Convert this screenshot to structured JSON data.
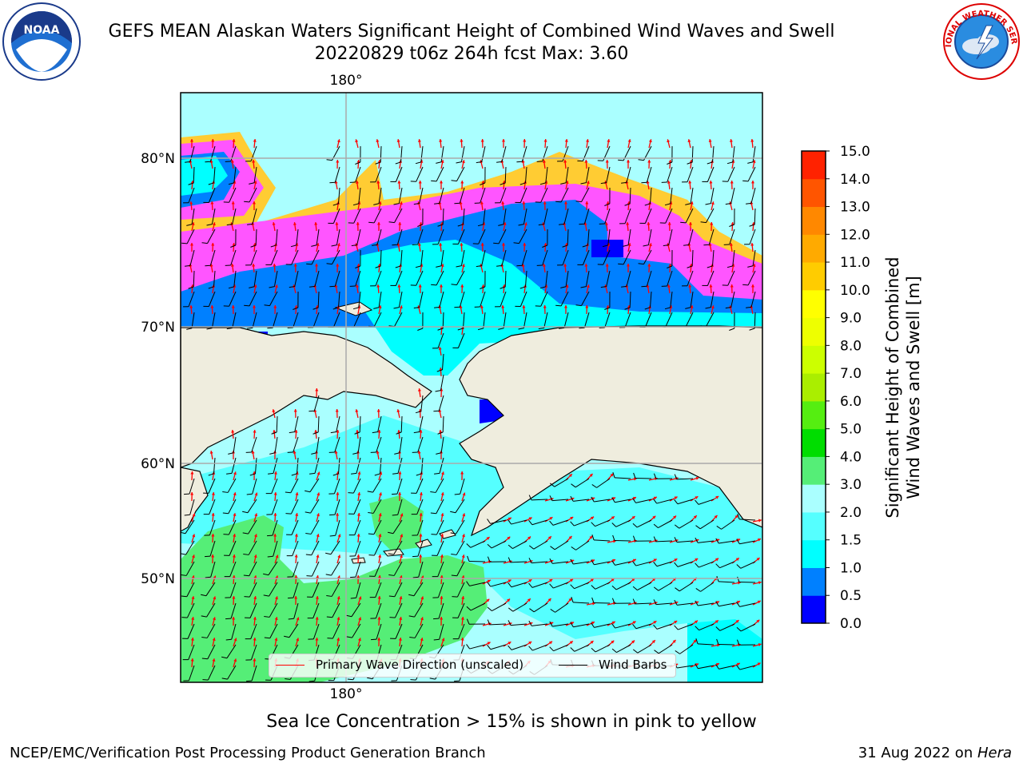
{
  "title_line1": "GEFS MEAN Alaskan Waters Significant Height of Combined Wind Waves and Swell",
  "title_line2": "20220829 t06z 264h fcst   Max: 3.60",
  "logos": {
    "noaa_text": "NOAA",
    "noaa_ring": "NATIONAL OCEANIC AND ATMOSPHERIC ADMINISTRATION · U.S. DEPARTMENT OF COMMERCE",
    "nws_ring": "NATIONAL WEATHER SERVICE"
  },
  "map": {
    "lon_labels": [
      "180°",
      "180°"
    ],
    "lat_labels": [
      "80°N",
      "70°N",
      "60°N",
      "50°N"
    ],
    "lat_values": [
      80,
      70,
      60,
      50
    ],
    "central_lon": 180,
    "colors": {
      "land": "#efedde",
      "ocean_low": "#aaffff",
      "ocean_mid": "#00ffff",
      "ocean_deep": "#0080ff",
      "ice_pink": "#ff55ff",
      "ice_yellow": "#ffcc33",
      "swell_green": "#55ee77",
      "wave_arrow": "#ff0000",
      "wind_barb": "#000000"
    }
  },
  "legend": {
    "wave_label": "Primary Wave Direction (unscaled)",
    "wind_label": "Wind Barbs",
    "wave_color": "#ff0000",
    "wind_color": "#000000"
  },
  "colorbar": {
    "label_line1": "Significant Height of Combined",
    "label_line2": "Wind Waves and Swell [m]",
    "ticks": [
      "0.0",
      "0.5",
      "1.0",
      "1.5",
      "2.0",
      "3.0",
      "4.0",
      "5.0",
      "6.0",
      "7.0",
      "8.0",
      "9.0",
      "10.0",
      "11.0",
      "12.0",
      "13.0",
      "14.0",
      "15.0"
    ],
    "colors": [
      "#0000ff",
      "#0080ff",
      "#00ffff",
      "#55ffff",
      "#aaffff",
      "#55ee77",
      "#00dd00",
      "#55ee11",
      "#aaee00",
      "#ccff00",
      "#eeff00",
      "#ffff00",
      "#ffcc00",
      "#ffaa00",
      "#ff8800",
      "#ff5500",
      "#ff2200"
    ]
  },
  "footer": {
    "note": "Sea Ice Concentration > 15% is shown in pink to yellow",
    "left": "NCEP/EMC/Verification Post Processing Product Generation Branch",
    "right_date": "31 Aug 2022 on ",
    "right_host": "Hera"
  }
}
